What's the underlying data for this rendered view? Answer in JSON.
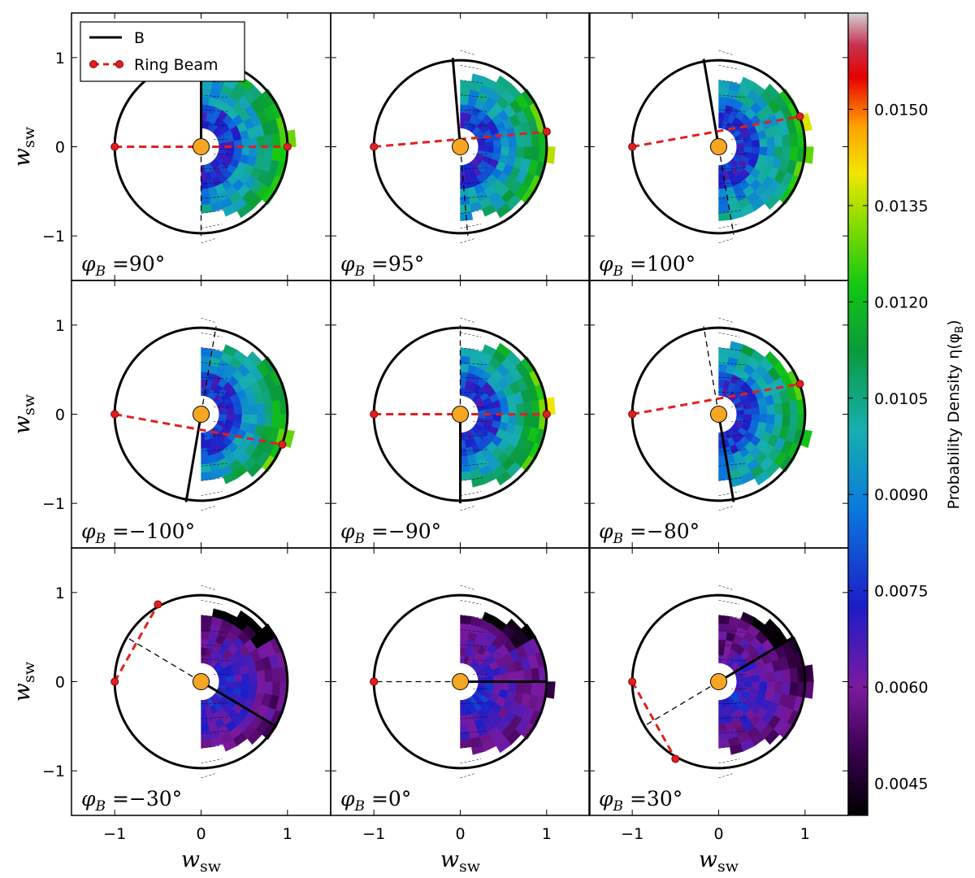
{
  "chart_data": {
    "type": "heatmap",
    "layout": "3x3 grid of polar-wedge probability-density maps",
    "xlabel": "w",
    "xlabel_sub": "sw",
    "ylabel": "w",
    "ylabel_sub": "sw",
    "xlim": [
      -1.5,
      1.5
    ],
    "ylim": [
      -1.5,
      1.5
    ],
    "xticks": [
      "−1",
      "0",
      "1"
    ],
    "yticks": [
      "1",
      "0",
      "−1"
    ],
    "legend": {
      "position": "top-left",
      "entries": [
        {
          "label": "B",
          "style": "solid-black"
        },
        {
          "label": "Ring Beam",
          "style": "dashed-red-with-markers"
        }
      ]
    },
    "colorbar": {
      "label": "Probability Density η(φ",
      "label_sub": "B",
      "label_close": ")",
      "min": 0.004,
      "max": 0.0165,
      "ticks": [
        "0.0045",
        "0.0060",
        "0.0075",
        "0.0090",
        "0.0105",
        "0.0120",
        "0.0135",
        "0.0150"
      ],
      "tick_values": [
        0.0045,
        0.006,
        0.0075,
        0.009,
        0.0105,
        0.012,
        0.0135,
        0.015
      ]
    },
    "panels": [
      {
        "label": "φ",
        "sub": "B",
        "value": " =90°",
        "phi_B": 90,
        "ring_beam": [
          [
            -1,
            0
          ],
          [
            1,
            0
          ]
        ],
        "level": 0.0125
      },
      {
        "label": "φ",
        "sub": "B",
        "value": " =95°",
        "phi_B": 95,
        "ring_beam": [
          [
            -1,
            0
          ],
          [
            1,
            0.17
          ]
        ],
        "level": 0.0122
      },
      {
        "label": "φ",
        "sub": "B",
        "value": " =100°",
        "phi_B": 100,
        "ring_beam": [
          [
            -1,
            0
          ],
          [
            0.94,
            0.34
          ]
        ],
        "level": 0.012
      },
      {
        "label": "φ",
        "sub": "B",
        "value": " =−100°",
        "phi_B": -100,
        "ring_beam": [
          [
            -1,
            0
          ],
          [
            0.94,
            -0.34
          ]
        ],
        "level": 0.0115
      },
      {
        "label": "φ",
        "sub": "B",
        "value": " =−90°",
        "phi_B": -90,
        "ring_beam": [
          [
            -1,
            0
          ],
          [
            1,
            0
          ]
        ],
        "level": 0.011
      },
      {
        "label": "φ",
        "sub": "B",
        "value": " =−80°",
        "phi_B": -80,
        "ring_beam": [
          [
            -1,
            0
          ],
          [
            0.94,
            0.34
          ]
        ],
        "level": 0.0118
      },
      {
        "label": "φ",
        "sub": "B",
        "value": " =−30°",
        "phi_B": -30,
        "ring_beam": [
          [
            -1,
            0
          ],
          [
            -0.5,
            0.866
          ]
        ],
        "level": 0.0068
      },
      {
        "label": "φ",
        "sub": "B",
        "value": " =0°",
        "phi_B": 0,
        "ring_beam": [
          [
            -1,
            0
          ],
          [
            -1,
            0
          ]
        ],
        "level": 0.0068
      },
      {
        "label": "φ",
        "sub": "B",
        "value": " =30°",
        "phi_B": 30,
        "ring_beam": [
          [
            -1,
            0
          ],
          [
            -0.5,
            -0.866
          ]
        ],
        "level": 0.0066
      }
    ]
  }
}
